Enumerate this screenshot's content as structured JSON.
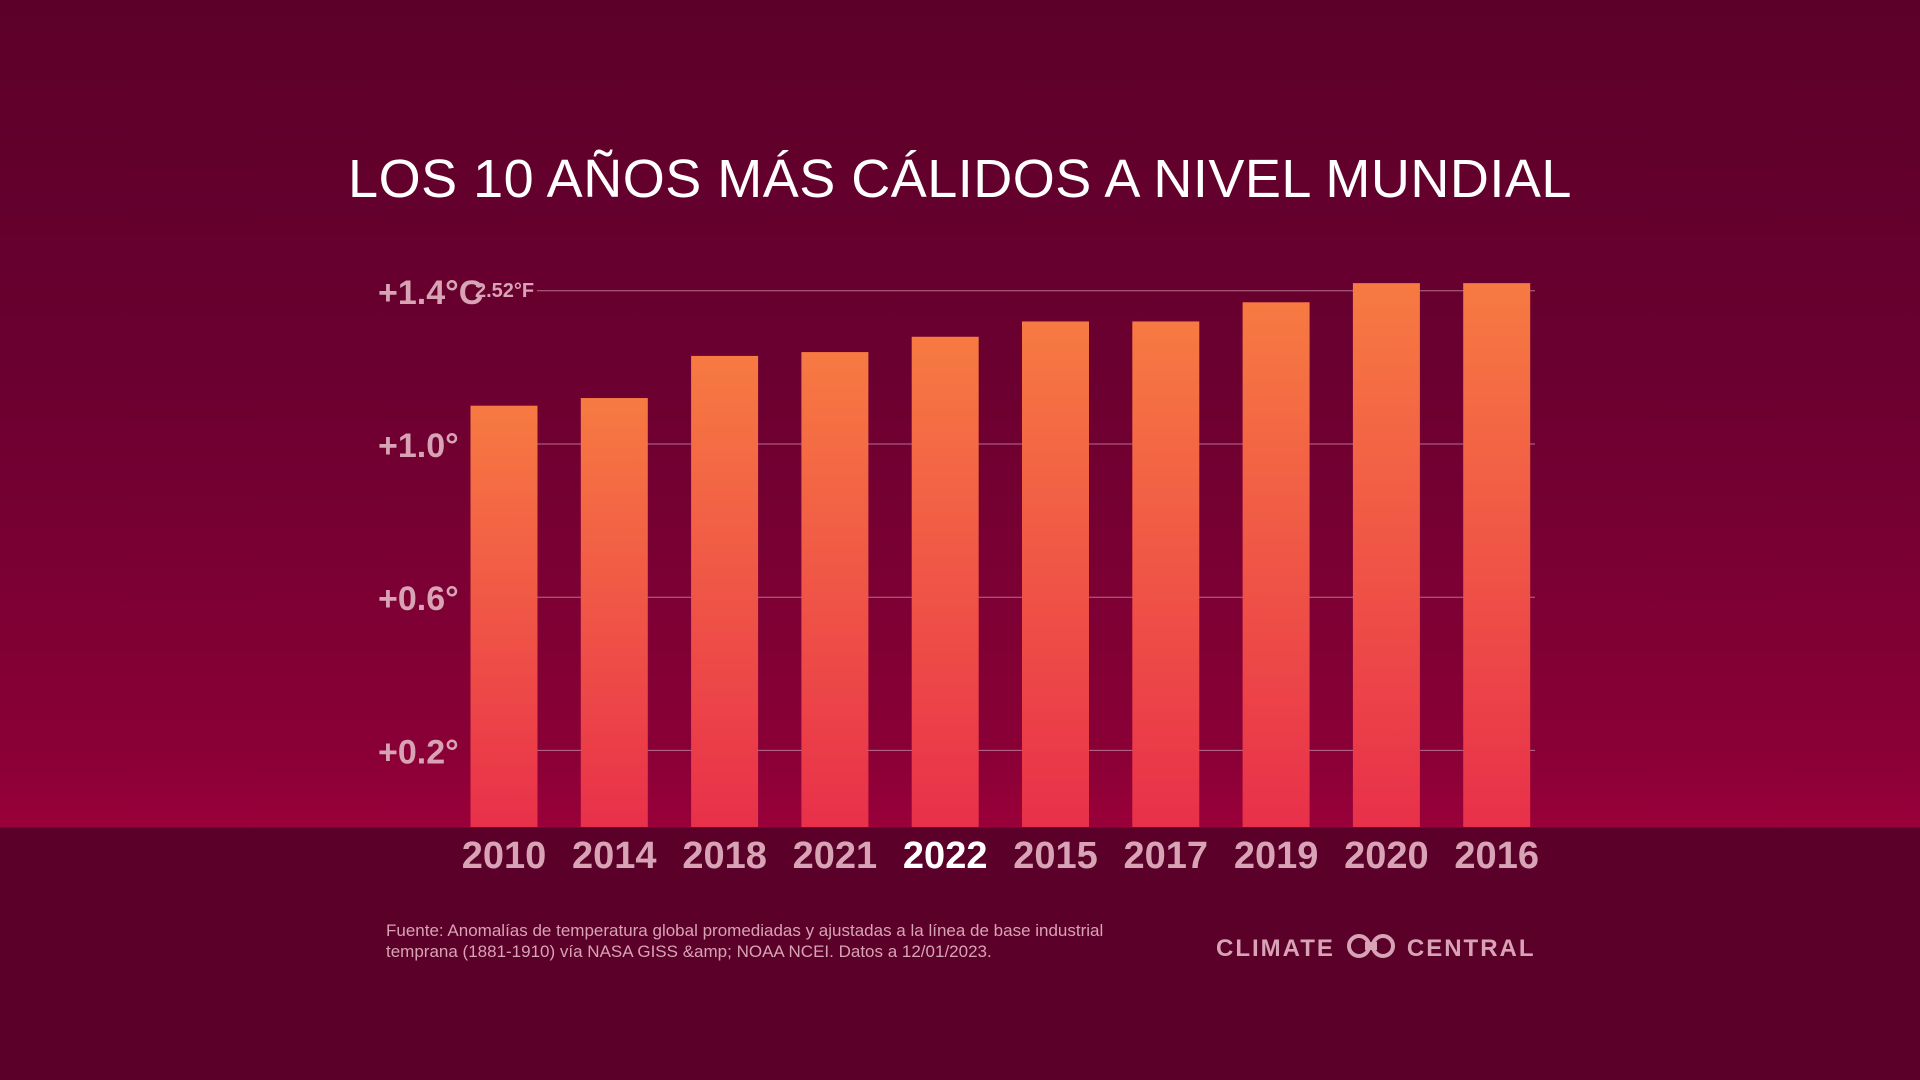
{
  "title": "LOS 10 AÑOS MÁS CÁLIDOS A NIVEL MUNDIAL",
  "source": "Fuente: Anomalías de temperatura global promediadas y ajustadas a la línea de base industrial temprana (1881-1910) vía NASA GISS &amp; NOAA NCEI. Datos a 12/01/2023.",
  "brand": {
    "word1": "CLIMATE",
    "word2": "CENTRAL",
    "logo_icon": "climate-central-logo-icon"
  },
  "colors": {
    "bar_top": "#f77a42",
    "bar_bottom": "#e8304a",
    "tick_text": "#d9a3b6",
    "highlight_text": "#ffffff",
    "grid": "#c48aa0"
  },
  "chart_data": {
    "type": "bar",
    "title": "LOS 10 AÑOS MÁS CÁLIDOS A NIVEL MUNDIAL",
    "categories": [
      "2010",
      "2014",
      "2018",
      "2021",
      "2022",
      "2015",
      "2017",
      "2019",
      "2020",
      "2016"
    ],
    "values": [
      1.1,
      1.12,
      1.23,
      1.24,
      1.28,
      1.32,
      1.32,
      1.37,
      1.42,
      1.42
    ],
    "highlight": "2022",
    "yticks": [
      0.2,
      0.6,
      1.0,
      1.4
    ],
    "ytick_labels": [
      "+0.2°",
      "+0.6°",
      "+1.0°",
      "+1.4°C"
    ],
    "ytick_secondary": {
      "1.4": "2.52°F"
    },
    "ylim": [
      0.0,
      1.4
    ],
    "xlabel": "",
    "ylabel": "",
    "grid": true
  }
}
